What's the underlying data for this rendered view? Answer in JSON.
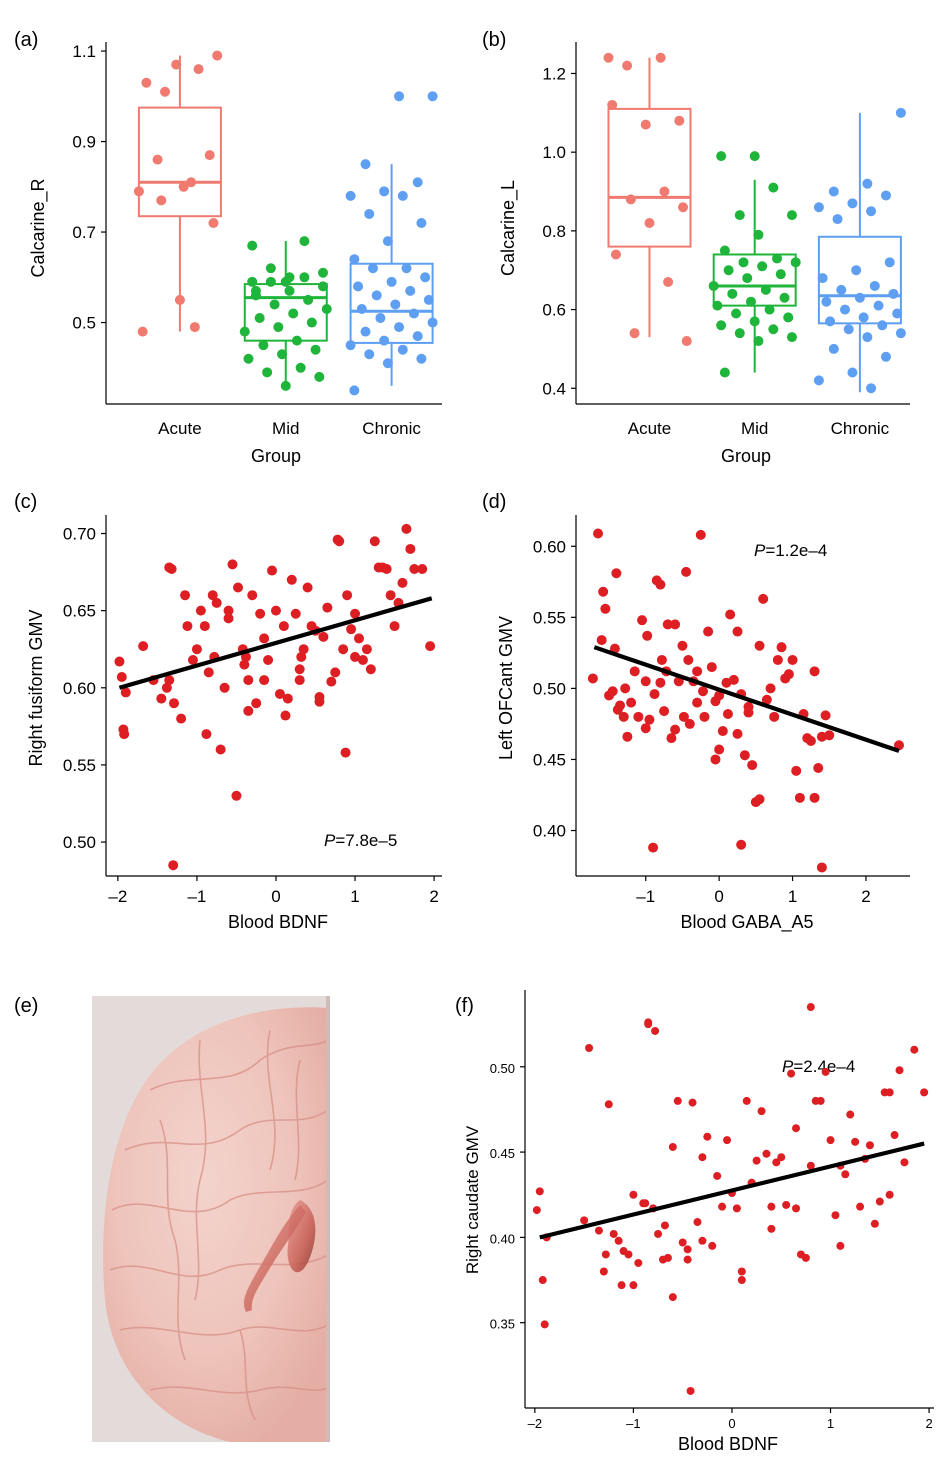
{
  "colors": {
    "acute": "#f07a70",
    "mid": "#1fb43a",
    "chronic": "#5f9ff2",
    "scatter": "#dd1f24",
    "fit": "#000000"
  },
  "icons": {
    "brain_image": "brain-render-icon"
  },
  "chart_data": [
    {
      "id": "a",
      "panel_label": "(a)",
      "type": "box",
      "ylabel": "Calcarine_R",
      "xlabel": "",
      "categories": [
        "Acute",
        "Mid",
        "Chronic"
      ],
      "ylim": [
        0.32,
        1.12
      ],
      "yticks": [
        0.5,
        0.7,
        0.9,
        1.1
      ],
      "ytick_labels": [
        "0.5",
        "0.7",
        "0.9",
        "1.1"
      ],
      "boxes": [
        {
          "name": "Acute",
          "color_key": "acute",
          "min": 0.48,
          "q1": 0.735,
          "median": 0.81,
          "q3": 0.975,
          "max": 1.09
        },
        {
          "name": "Mid",
          "color_key": "mid",
          "min": 0.36,
          "q1": 0.46,
          "median": 0.555,
          "q3": 0.585,
          "max": 0.68
        },
        {
          "name": "Chronic",
          "color_key": "chronic",
          "min": 0.36,
          "q1": 0.455,
          "median": 0.525,
          "q3": 0.63,
          "max": 0.85
        }
      ],
      "points": [
        [
          0.79,
          0.81,
          0.86,
          0.87,
          1.07,
          0.48,
          0.49,
          0.77,
          0.72,
          0.55,
          1.03,
          1.06,
          1.01,
          1.09,
          0.8
        ],
        [
          0.59,
          0.59,
          0.6,
          0.59,
          0.58,
          0.57,
          0.56,
          0.55,
          0.54,
          0.53,
          0.52,
          0.51,
          0.5,
          0.49,
          0.48,
          0.46,
          0.45,
          0.44,
          0.43,
          0.42,
          0.4,
          0.39,
          0.38,
          0.36,
          0.67,
          0.68,
          0.62,
          0.61,
          0.6,
          0.57
        ],
        [
          1.0,
          1.0,
          0.85,
          0.81,
          0.79,
          0.78,
          0.78,
          0.74,
          0.72,
          0.68,
          0.64,
          0.62,
          0.62,
          0.6,
          0.59,
          0.58,
          0.57,
          0.56,
          0.55,
          0.54,
          0.53,
          0.52,
          0.51,
          0.5,
          0.49,
          0.48,
          0.47,
          0.46,
          0.45,
          0.44,
          0.43,
          0.42,
          0.41,
          0.35
        ]
      ]
    },
    {
      "id": "b",
      "panel_label": "(b)",
      "type": "box",
      "ylabel": "Calcarine_L",
      "xlabel": "Group",
      "categories": [
        "Acute",
        "Mid",
        "Chronic"
      ],
      "ylim": [
        0.36,
        1.28
      ],
      "yticks": [
        0.4,
        0.6,
        0.8,
        1.0,
        1.2
      ],
      "ytick_labels": [
        "0.4",
        "0.6",
        "0.8",
        "1.0",
        "1.2"
      ],
      "boxes": [
        {
          "name": "Acute",
          "color_key": "acute",
          "min": 0.53,
          "q1": 0.76,
          "median": 0.885,
          "q3": 1.11,
          "max": 1.24
        },
        {
          "name": "Mid",
          "color_key": "mid",
          "min": 0.44,
          "q1": 0.61,
          "median": 0.66,
          "q3": 0.74,
          "max": 0.93
        },
        {
          "name": "Chronic",
          "color_key": "chronic",
          "min": 0.39,
          "q1": 0.565,
          "median": 0.635,
          "q3": 0.785,
          "max": 1.1
        }
      ],
      "points": [
        [
          1.24,
          1.24,
          1.22,
          1.08,
          1.07,
          1.12,
          0.9,
          0.88,
          0.86,
          0.82,
          0.74,
          0.67,
          0.54,
          0.52
        ],
        [
          0.99,
          0.99,
          0.91,
          0.84,
          0.84,
          0.79,
          0.75,
          0.73,
          0.72,
          0.72,
          0.71,
          0.7,
          0.69,
          0.68,
          0.66,
          0.65,
          0.64,
          0.63,
          0.62,
          0.61,
          0.6,
          0.59,
          0.58,
          0.57,
          0.56,
          0.55,
          0.54,
          0.53,
          0.52,
          0.44
        ],
        [
          1.1,
          0.92,
          0.9,
          0.89,
          0.87,
          0.86,
          0.85,
          0.83,
          0.72,
          0.7,
          0.68,
          0.66,
          0.65,
          0.64,
          0.63,
          0.62,
          0.61,
          0.6,
          0.59,
          0.58,
          0.57,
          0.56,
          0.55,
          0.54,
          0.53,
          0.5,
          0.48,
          0.44,
          0.42,
          0.4
        ]
      ]
    },
    {
      "id": "c",
      "panel_label": "(c)",
      "type": "scatter",
      "ylabel": "Right fusiform GMV",
      "xlabel": "Blood BDNF",
      "annotation_p": "P",
      "annotation_rest": "=7.8e–5",
      "xlim": [
        -2.15,
        2.1
      ],
      "ylim": [
        0.478,
        0.712
      ],
      "xticks": [
        -2,
        -1,
        0,
        1,
        2
      ],
      "xtick_labels": [
        "–2",
        "–1",
        "0",
        "1",
        "2"
      ],
      "yticks": [
        0.5,
        0.55,
        0.6,
        0.65,
        0.7
      ],
      "ytick_labels": [
        "0.50",
        "0.55",
        "0.60",
        "0.65",
        "0.70"
      ],
      "fit": [
        [
          -1.98,
          0.6
        ],
        [
          1.97,
          0.658
        ]
      ],
      "x": [
        -1.98,
        -1.95,
        -1.93,
        -1.92,
        -1.9,
        -1.68,
        -1.55,
        -1.45,
        -1.38,
        -1.35,
        -1.32,
        -1.3,
        -1.29,
        -1.2,
        -1.15,
        -1.12,
        -1.05,
        -1.0,
        -0.95,
        -0.9,
        -0.88,
        -0.85,
        -0.8,
        -0.78,
        -0.75,
        -0.7,
        -0.65,
        -0.6,
        -0.55,
        -0.5,
        -0.48,
        -0.42,
        -0.4,
        -0.38,
        -0.35,
        -0.3,
        -0.25,
        -0.2,
        -0.15,
        -0.1,
        -0.05,
        0.0,
        0.05,
        0.1,
        0.12,
        0.15,
        0.2,
        0.25,
        0.3,
        0.32,
        0.35,
        0.4,
        0.45,
        0.5,
        0.55,
        0.6,
        0.65,
        0.7,
        0.75,
        0.78,
        0.8,
        0.85,
        0.9,
        0.95,
        1.0,
        1.05,
        1.1,
        1.15,
        1.2,
        1.25,
        1.3,
        1.35,
        1.4,
        1.45,
        1.5,
        1.55,
        1.6,
        1.65,
        1.7,
        1.75,
        1.85,
        1.95,
        0.88,
        -0.35,
        -1.35,
        -0.6,
        0.3,
        0.55,
        -0.15,
        1.0
      ],
      "y": [
        0.617,
        0.607,
        0.573,
        0.57,
        0.597,
        0.627,
        0.605,
        0.593,
        0.6,
        0.678,
        0.677,
        0.485,
        0.59,
        0.58,
        0.66,
        0.64,
        0.618,
        0.625,
        0.65,
        0.64,
        0.57,
        0.61,
        0.66,
        0.62,
        0.655,
        0.56,
        0.6,
        0.645,
        0.68,
        0.53,
        0.665,
        0.625,
        0.615,
        0.62,
        0.585,
        0.66,
        0.59,
        0.648,
        0.605,
        0.618,
        0.676,
        0.65,
        0.596,
        0.64,
        0.582,
        0.593,
        0.67,
        0.648,
        0.605,
        0.62,
        0.625,
        0.665,
        0.64,
        0.637,
        0.594,
        0.633,
        0.652,
        0.604,
        0.61,
        0.696,
        0.695,
        0.625,
        0.66,
        0.638,
        0.648,
        0.632,
        0.618,
        0.625,
        0.612,
        0.695,
        0.678,
        0.678,
        0.677,
        0.66,
        0.64,
        0.655,
        0.668,
        0.703,
        0.69,
        0.677,
        0.677,
        0.627,
        0.558,
        0.605,
        0.605,
        0.65,
        0.612,
        0.591,
        0.632,
        0.62
      ]
    },
    {
      "id": "d",
      "panel_label": "(d)",
      "type": "scatter",
      "ylabel": "Left OFCant GMV",
      "xlabel": "Blood GABA_A5",
      "annotation_p": "P",
      "annotation_rest": "=1.2e–4",
      "xlim": [
        -1.95,
        2.6
      ],
      "ylim": [
        0.368,
        0.622
      ],
      "xticks": [
        -1,
        0,
        1,
        2
      ],
      "xtick_labels": [
        "–1",
        "0",
        "1",
        "2"
      ],
      "yticks": [
        0.4,
        0.45,
        0.5,
        0.55,
        0.6
      ],
      "ytick_labels": [
        "0.40",
        "0.45",
        "0.50",
        "0.55",
        "0.60"
      ],
      "fit": [
        [
          -1.7,
          0.529
        ],
        [
          2.45,
          0.456
        ]
      ],
      "x": [
        -1.72,
        -1.65,
        -1.6,
        -1.58,
        -1.55,
        -1.5,
        -1.45,
        -1.42,
        -1.4,
        -1.38,
        -1.35,
        -1.3,
        -1.28,
        -1.25,
        -1.2,
        -1.15,
        -1.1,
        -1.05,
        -1.0,
        -0.98,
        -0.95,
        -0.9,
        -0.88,
        -0.85,
        -0.8,
        -0.78,
        -0.75,
        -0.72,
        -0.7,
        -0.65,
        -0.6,
        -0.55,
        -0.5,
        -0.48,
        -0.45,
        -0.42,
        -0.4,
        -0.35,
        -0.3,
        -0.25,
        -0.22,
        -0.2,
        -0.15,
        -0.1,
        -0.05,
        0.0,
        0.05,
        0.1,
        0.12,
        0.15,
        0.2,
        0.25,
        0.3,
        0.35,
        0.4,
        0.45,
        0.5,
        0.55,
        0.6,
        0.65,
        0.7,
        0.75,
        0.8,
        0.85,
        0.9,
        0.95,
        1.0,
        1.05,
        1.1,
        1.15,
        1.2,
        1.25,
        1.3,
        1.35,
        1.4,
        1.45,
        1.5,
        2.45,
        0.3,
        -1.0,
        -0.3,
        0.25,
        -0.6,
        -0.8,
        0.0,
        0.4,
        0.55,
        -0.05,
        1.3,
        1.4
      ],
      "y": [
        0.507,
        0.609,
        0.534,
        0.568,
        0.556,
        0.495,
        0.498,
        0.528,
        0.581,
        0.485,
        0.488,
        0.48,
        0.5,
        0.466,
        0.49,
        0.512,
        0.48,
        0.548,
        0.505,
        0.537,
        0.478,
        0.388,
        0.496,
        0.576,
        0.573,
        0.52,
        0.484,
        0.512,
        0.545,
        0.465,
        0.545,
        0.505,
        0.53,
        0.48,
        0.582,
        0.52,
        0.475,
        0.505,
        0.49,
        0.608,
        0.498,
        0.48,
        0.54,
        0.515,
        0.45,
        0.495,
        0.47,
        0.504,
        0.482,
        0.552,
        0.506,
        0.468,
        0.39,
        0.453,
        0.483,
        0.446,
        0.42,
        0.422,
        0.563,
        0.492,
        0.5,
        0.48,
        0.52,
        0.529,
        0.507,
        0.51,
        0.52,
        0.442,
        0.423,
        0.482,
        0.465,
        0.463,
        0.512,
        0.444,
        0.374,
        0.481,
        0.467,
        0.46,
        0.496,
        0.472,
        0.512,
        0.54,
        0.471,
        0.504,
        0.457,
        0.487,
        0.53,
        0.491,
        0.423,
        0.466
      ]
    },
    {
      "id": "e",
      "panel_label": "(e)",
      "type": "image",
      "description_icon": "brain-render-icon"
    },
    {
      "id": "f",
      "panel_label": "(f)",
      "type": "scatter",
      "ylabel": "Right caudate GMV",
      "xlabel": "Blood BDNF",
      "annotation_p": "P",
      "annotation_rest": "=2.4e–4",
      "xlim": [
        -2.1,
        2.05
      ],
      "ylim": [
        0.3,
        0.545
      ],
      "xticks": [
        -2,
        -1,
        0,
        1,
        2
      ],
      "xtick_labels": [
        "–2",
        "–1",
        "0",
        "1",
        "2"
      ],
      "yticks": [
        0.35,
        0.4,
        0.45,
        0.5
      ],
      "ytick_labels": [
        "0.35",
        "0.40",
        "0.45",
        "0.50"
      ],
      "fit": [
        [
          -1.95,
          0.4
        ],
        [
          1.95,
          0.455
        ]
      ],
      "x": [
        -1.98,
        -1.95,
        -1.92,
        -1.9,
        -1.88,
        -1.5,
        -1.45,
        -1.35,
        -1.3,
        -1.28,
        -1.25,
        -1.2,
        -1.15,
        -1.12,
        -1.1,
        -1.05,
        -1.0,
        -0.95,
        -0.9,
        -0.88,
        -0.85,
        -0.8,
        -0.78,
        -0.75,
        -0.7,
        -0.68,
        -0.65,
        -0.6,
        -0.55,
        -0.5,
        -0.45,
        -0.42,
        -0.4,
        -0.35,
        -0.3,
        -0.25,
        -0.2,
        -0.15,
        -0.1,
        -0.05,
        0.0,
        0.05,
        0.1,
        0.15,
        0.2,
        0.25,
        0.3,
        0.35,
        0.4,
        0.45,
        0.5,
        0.55,
        0.6,
        0.65,
        0.7,
        0.75,
        0.8,
        0.85,
        0.9,
        0.95,
        1.0,
        1.05,
        1.1,
        1.15,
        1.2,
        1.25,
        1.3,
        1.35,
        1.4,
        1.45,
        1.5,
        1.55,
        1.6,
        1.65,
        1.7,
        1.75,
        1.85,
        1.95,
        0.8,
        -0.85,
        -0.45,
        0.65,
        -0.3,
        0.1,
        1.1,
        -1.0,
        0.4,
        -0.6,
        1.6,
        0.2
      ],
      "y": [
        0.416,
        0.427,
        0.375,
        0.349,
        0.4,
        0.41,
        0.511,
        0.404,
        0.38,
        0.39,
        0.478,
        0.402,
        0.398,
        0.372,
        0.392,
        0.39,
        0.425,
        0.385,
        0.42,
        0.42,
        0.526,
        0.417,
        0.521,
        0.402,
        0.387,
        0.407,
        0.388,
        0.365,
        0.48,
        0.397,
        0.393,
        0.31,
        0.479,
        0.409,
        0.447,
        0.459,
        0.395,
        0.436,
        0.418,
        0.457,
        0.426,
        0.417,
        0.38,
        0.48,
        0.432,
        0.445,
        0.474,
        0.449,
        0.405,
        0.444,
        0.447,
        0.419,
        0.496,
        0.417,
        0.39,
        0.388,
        0.442,
        0.48,
        0.48,
        0.497,
        0.457,
        0.413,
        0.442,
        0.437,
        0.472,
        0.456,
        0.418,
        0.446,
        0.454,
        0.408,
        0.421,
        0.485,
        0.485,
        0.46,
        0.498,
        0.444,
        0.51,
        0.485,
        0.535,
        0.525,
        0.387,
        0.464,
        0.398,
        0.375,
        0.395,
        0.372,
        0.418,
        0.453,
        0.425,
        0.432
      ]
    }
  ]
}
